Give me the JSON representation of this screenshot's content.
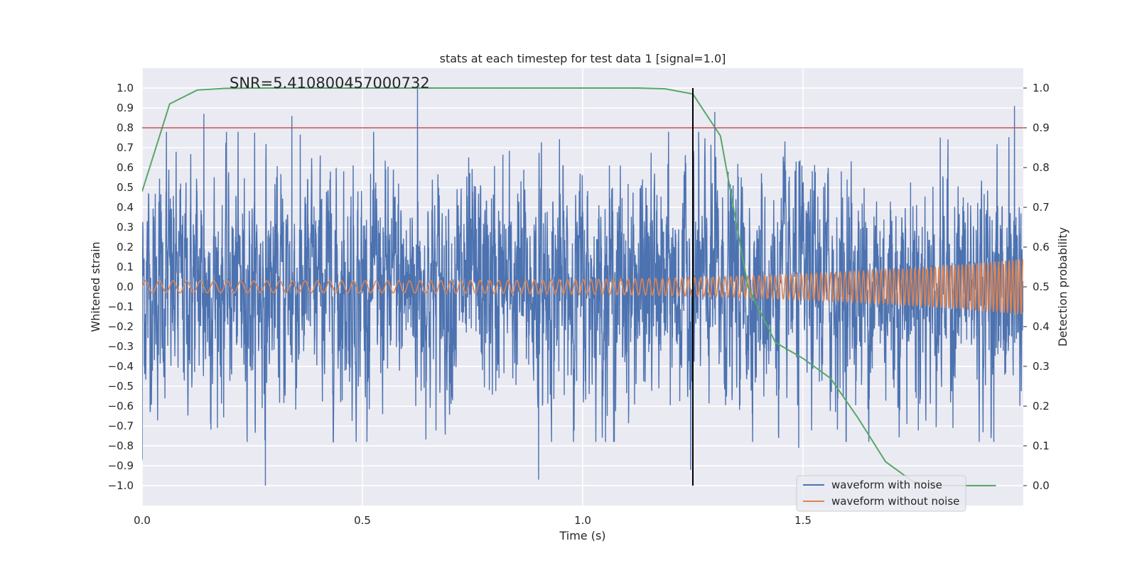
{
  "chart_data": {
    "type": "line",
    "title": "stats at each timestep for test data 1 [signal=1.0]",
    "xlabel": "Time (s)",
    "ylabel": "Whitened strain",
    "ylabel_right": "Detection probability",
    "annotation": "SNR=5.410800457000732",
    "xlim": [
      0.0,
      2.0
    ],
    "ylim": [
      -1.1,
      1.1
    ],
    "ylim_right": [
      -0.05,
      1.05
    ],
    "x_ticks": [
      0.0,
      0.5,
      1.0,
      1.5
    ],
    "x_tick_labels": [
      "0.0",
      "0.5",
      "1.0",
      "1.5"
    ],
    "y_ticks": [
      1.0,
      0.9,
      0.8,
      0.7,
      0.6,
      0.5,
      0.4,
      0.3,
      0.2,
      0.1,
      0.0,
      -0.1,
      -0.2,
      -0.3,
      -0.4,
      -0.5,
      -0.6,
      -0.7,
      -0.8,
      -0.9,
      -1.0
    ],
    "y_tick_labels": [
      "1.0",
      "0.9",
      "0.8",
      "0.7",
      "0.6",
      "0.5",
      "0.4",
      "0.3",
      "0.2",
      "0.1",
      "0.0",
      "−0.1",
      "−0.2",
      "−0.3",
      "−0.4",
      "−0.5",
      "−0.6",
      "−0.7",
      "−0.8",
      "−0.9",
      "−1.0"
    ],
    "y_ticks_right": [
      1.0,
      0.9,
      0.8,
      0.7,
      0.6,
      0.5,
      0.4,
      0.3,
      0.2,
      0.1,
      0.0
    ],
    "y_tick_labels_right": [
      "1.0",
      "0.9",
      "0.8",
      "0.7",
      "0.6",
      "0.5",
      "0.4",
      "0.3",
      "0.2",
      "0.1",
      "0.0"
    ],
    "grid": true,
    "legend_position": "bottom-right",
    "background_color": "#eaeaf2",
    "series": [
      {
        "name": "waveform with noise",
        "axis": "left",
        "color": "#4c72b0",
        "kind": "noisy",
        "sample_rate": 2048,
        "duration": 2.0,
        "approx_std": 0.29,
        "peak_values": [
          {
            "x": 0.0,
            "y": -0.87
          },
          {
            "x": 0.055,
            "y": 0.78
          },
          {
            "x": 0.14,
            "y": 0.87
          },
          {
            "x": 0.28,
            "y": -1.0
          },
          {
            "x": 0.34,
            "y": 0.86
          },
          {
            "x": 0.625,
            "y": 1.0
          },
          {
            "x": 0.9,
            "y": -0.97
          },
          {
            "x": 1.245,
            "y": -0.92
          },
          {
            "x": 1.3,
            "y": 0.88
          },
          {
            "x": 1.49,
            "y": -0.81
          },
          {
            "x": 1.98,
            "y": 0.91
          }
        ]
      },
      {
        "name": "waveform without noise",
        "axis": "left",
        "color": "#dd8452",
        "kind": "chirp",
        "amplitude_start": 0.03,
        "amplitude_end": 0.14,
        "frequency_start_hz": 32,
        "frequency_end_hz": 130
      },
      {
        "name": "",
        "axis": "right",
        "color": "#55a868",
        "kind": "line",
        "x": [
          0.0,
          0.0625,
          0.125,
          0.1875,
          0.25,
          0.3125,
          0.375,
          0.4375,
          0.5,
          0.5625,
          0.625,
          0.6875,
          0.75,
          0.8125,
          0.875,
          0.9375,
          1.0,
          1.0625,
          1.125,
          1.1875,
          1.25,
          1.3125,
          1.375,
          1.4375,
          1.5,
          1.5625,
          1.625,
          1.6875,
          1.75,
          1.8125,
          1.875,
          1.9375
        ],
        "y": [
          0.74,
          0.96,
          0.995,
          0.999,
          1.0,
          1.0,
          1.0,
          1.0,
          1.0,
          1.0,
          1.0,
          1.0,
          1.0,
          1.0,
          1.0,
          1.0,
          1.0,
          1.0,
          1.0,
          0.998,
          0.985,
          0.88,
          0.5,
          0.36,
          0.32,
          0.27,
          0.17,
          0.06,
          0.01,
          0.0,
          0.0,
          0.0
        ]
      },
      {
        "name": "",
        "axis": "right",
        "color": "#c44e52",
        "kind": "hline",
        "value": 0.9
      },
      {
        "name": "",
        "axis": "right",
        "color": "#000000",
        "kind": "vline",
        "value": 1.25,
        "ymin": 0.0,
        "ymax": 1.0
      }
    ]
  }
}
